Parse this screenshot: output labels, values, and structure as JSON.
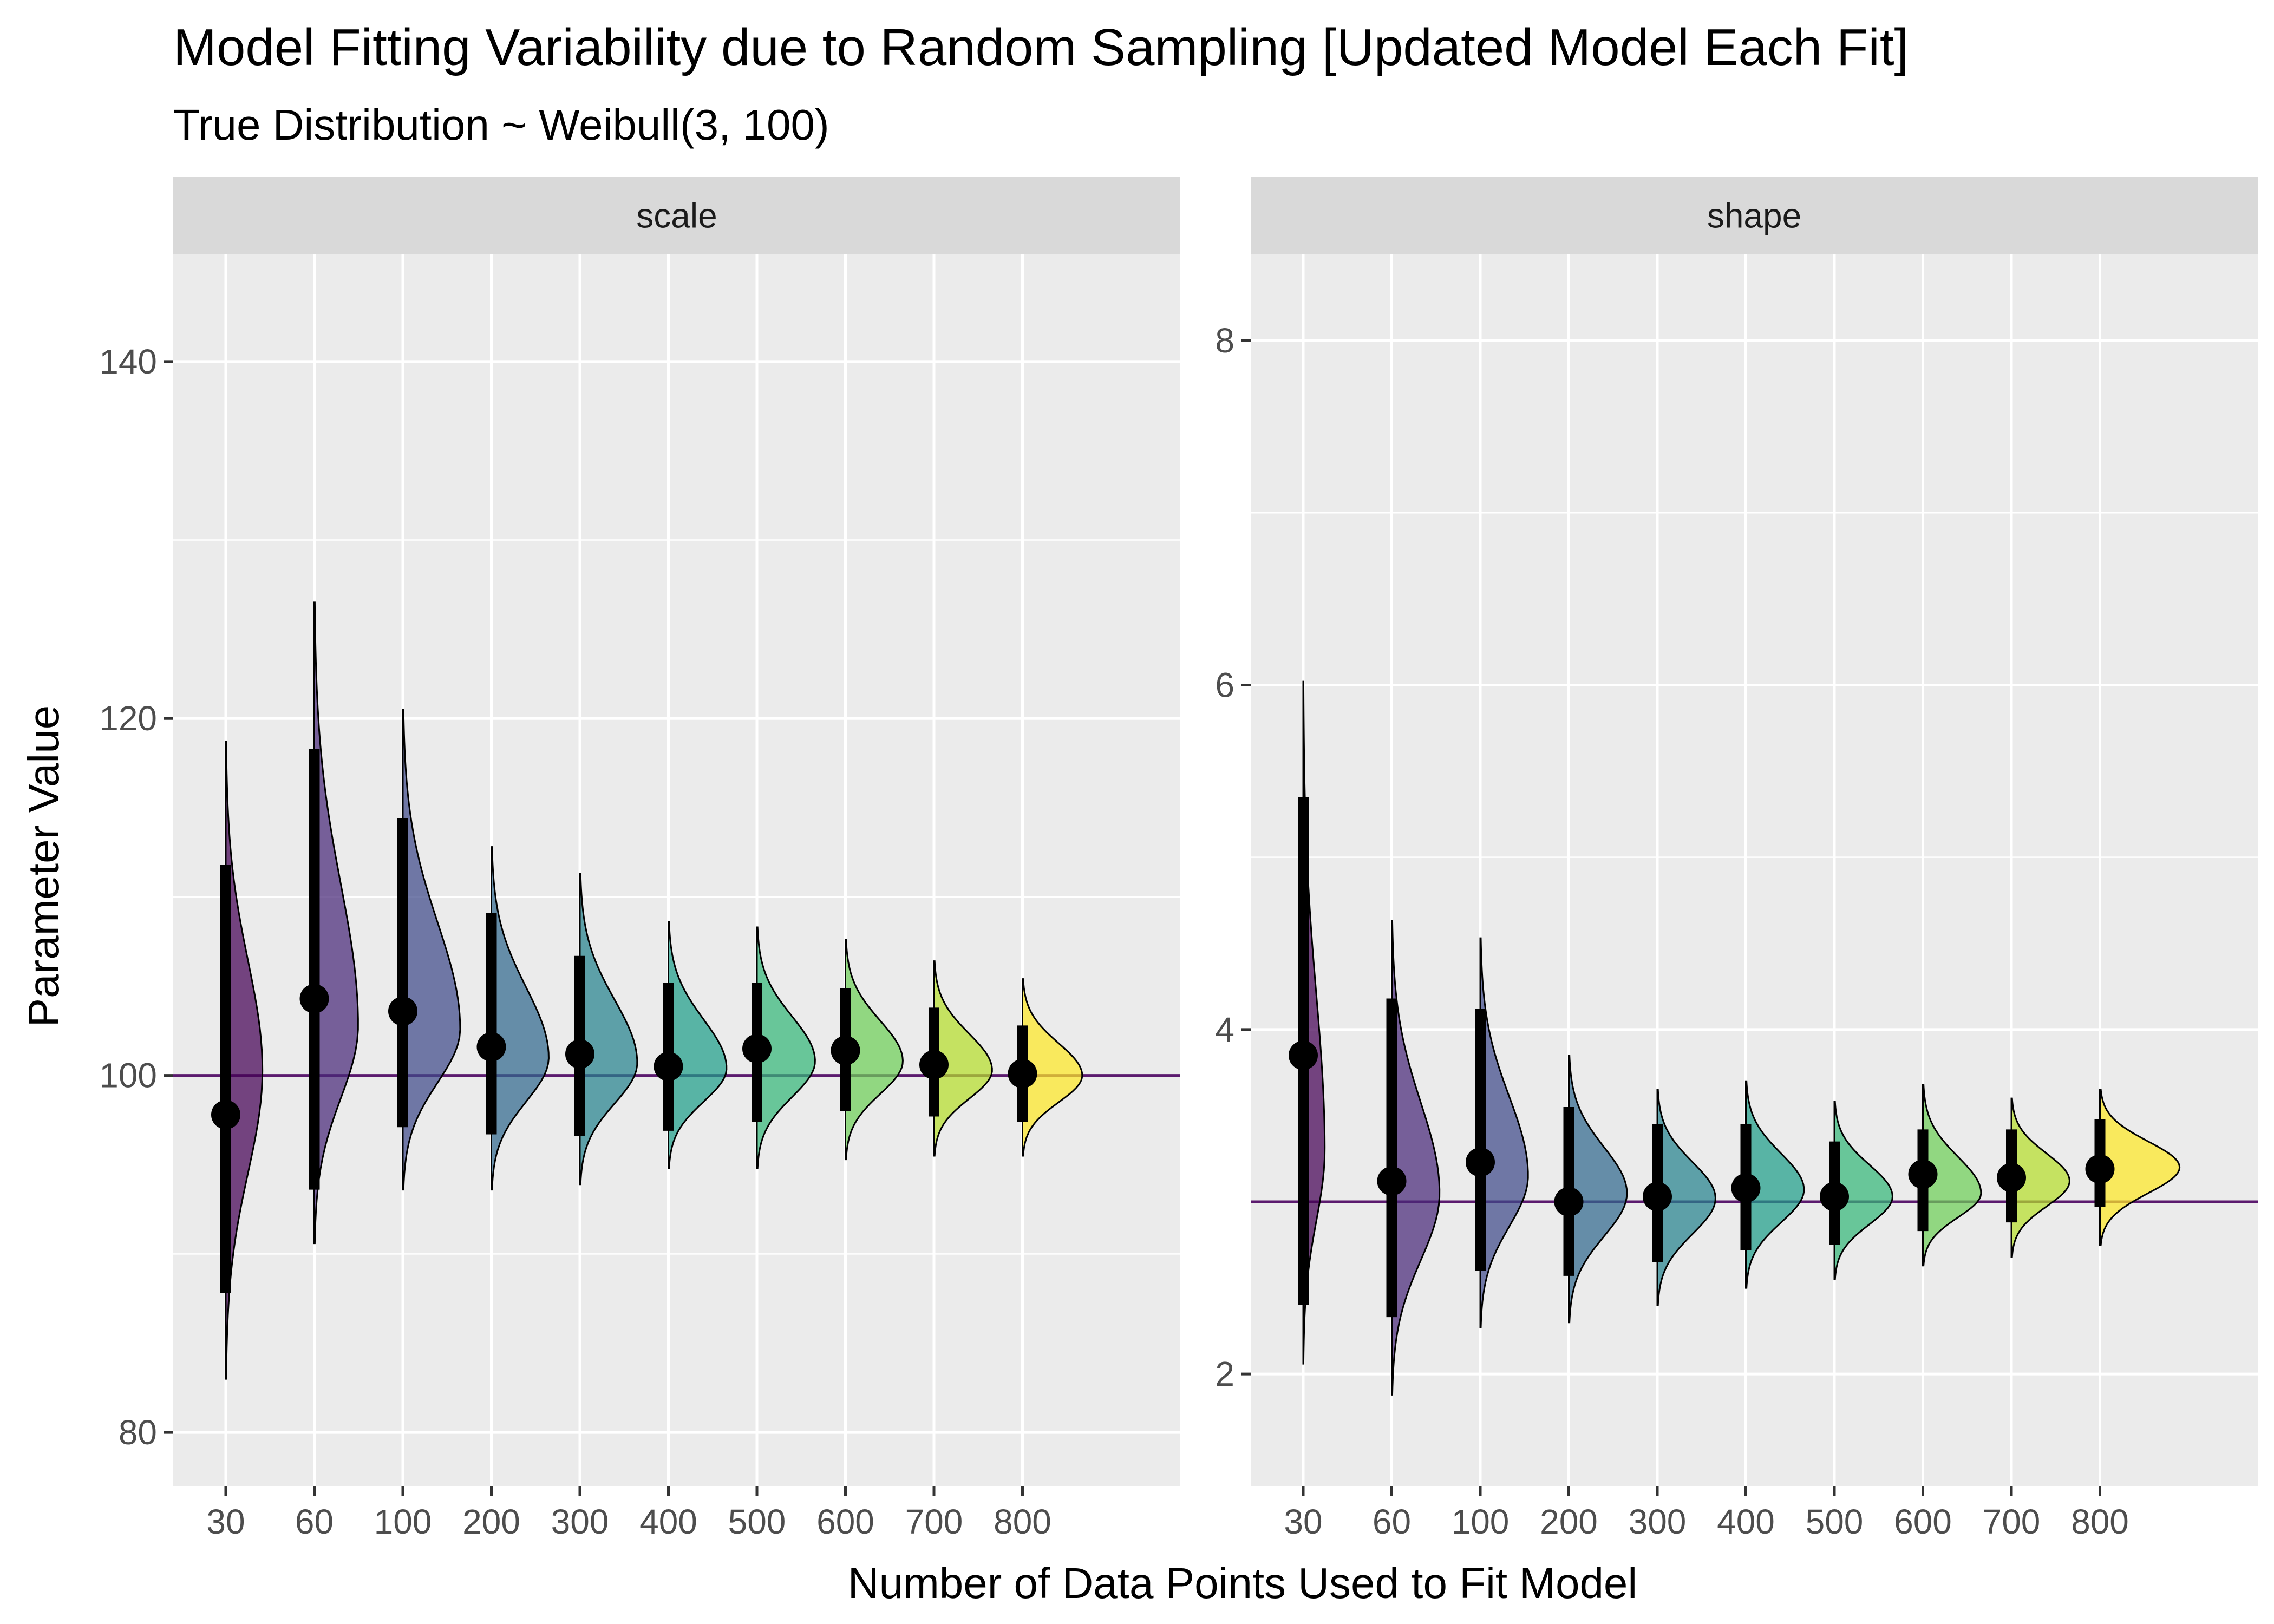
{
  "chart_data": {
    "type": "halfeye",
    "title": "Model Fitting Variability due to Random Sampling [Updated Model Each Fit]",
    "subtitle": "True Distribution ~ Weibull(3, 100)",
    "xlabel": "Number of Data Points Used to Fit Model",
    "ylabel": "Parameter Value",
    "categories": [
      "30",
      "60",
      "100",
      "200",
      "300",
      "400",
      "500",
      "600",
      "700",
      "800"
    ],
    "fill_colors": [
      "#440154",
      "#482878",
      "#3e4989",
      "#31688e",
      "#26828e",
      "#1f9e89",
      "#35b779",
      "#6ece58",
      "#b5de2b",
      "#fde725"
    ],
    "reference_line_color": "#5b1a6e",
    "panel_background": "#ebebeb",
    "strip_background": "#d9d9d9",
    "grid": true,
    "legend": "none",
    "panels": [
      {
        "strip": "scale",
        "true_value": 100,
        "ylim": [
          77,
          146
        ],
        "yticks": [
          80,
          100,
          120,
          140
        ],
        "ytick_labels": [
          "80",
          "100",
          "120",
          "140"
        ],
        "points": [
          97.8,
          104.3,
          103.6,
          101.6,
          101.2,
          100.5,
          101.5,
          101.4,
          100.6,
          100.1
        ],
        "interval": [
          [
            87.8,
            111.8
          ],
          [
            93.6,
            118.3
          ],
          [
            97.1,
            114.4
          ],
          [
            96.7,
            109.1
          ],
          [
            96.6,
            106.7
          ],
          [
            96.9,
            105.2
          ],
          [
            97.4,
            105.2
          ],
          [
            98.0,
            104.9
          ],
          [
            97.7,
            103.8
          ],
          [
            97.4,
            102.8
          ]
        ],
        "range": [
          [
            83.0,
            118.7
          ],
          [
            90.6,
            126.5
          ],
          [
            93.6,
            120.5
          ],
          [
            93.6,
            112.8
          ],
          [
            93.9,
            111.3
          ],
          [
            94.8,
            108.6
          ],
          [
            94.8,
            108.3
          ],
          [
            95.3,
            107.6
          ],
          [
            95.5,
            106.4
          ],
          [
            95.5,
            105.4
          ]
        ],
        "density_peak": [
          100.3,
          102.8,
          102.6,
          101.0,
          100.7,
          100.4,
          100.8,
          100.8,
          100.3,
          100.0
        ],
        "density_width": [
          0.46,
          0.55,
          0.72,
          0.72,
          0.72,
          0.73,
          0.73,
          0.72,
          0.73,
          0.75
        ]
      },
      {
        "strip": "shape",
        "true_value": 3.0,
        "ylim": [
          1.35,
          8.5
        ],
        "yticks": [
          2,
          4,
          6,
          8
        ],
        "ytick_labels": [
          "2",
          "4",
          "6",
          "8"
        ],
        "points": [
          3.85,
          3.12,
          3.23,
          3.0,
          3.03,
          3.08,
          3.03,
          3.16,
          3.14,
          3.19
        ],
        "interval": [
          [
            2.4,
            5.35
          ],
          [
            2.33,
            4.18
          ],
          [
            2.6,
            4.12
          ],
          [
            2.57,
            3.55
          ],
          [
            2.65,
            3.45
          ],
          [
            2.72,
            3.45
          ],
          [
            2.75,
            3.35
          ],
          [
            2.83,
            3.42
          ],
          [
            2.88,
            3.42
          ],
          [
            2.97,
            3.48
          ]
        ],
        "range": [
          [
            2.06,
            6.02
          ],
          [
            1.88,
            4.63
          ],
          [
            2.27,
            4.53
          ],
          [
            2.3,
            3.85
          ],
          [
            2.4,
            3.65
          ],
          [
            2.5,
            3.7
          ],
          [
            2.55,
            3.58
          ],
          [
            2.63,
            3.68
          ],
          [
            2.68,
            3.6
          ],
          [
            2.75,
            3.65
          ]
        ],
        "density_peak": [
          3.3,
          3.05,
          3.15,
          3.05,
          3.02,
          3.07,
          3.03,
          3.05,
          3.12,
          3.2
        ],
        "density_width": [
          0.27,
          0.6,
          0.6,
          0.73,
          0.73,
          0.73,
          0.73,
          0.73,
          0.73,
          1.0
        ]
      }
    ]
  }
}
